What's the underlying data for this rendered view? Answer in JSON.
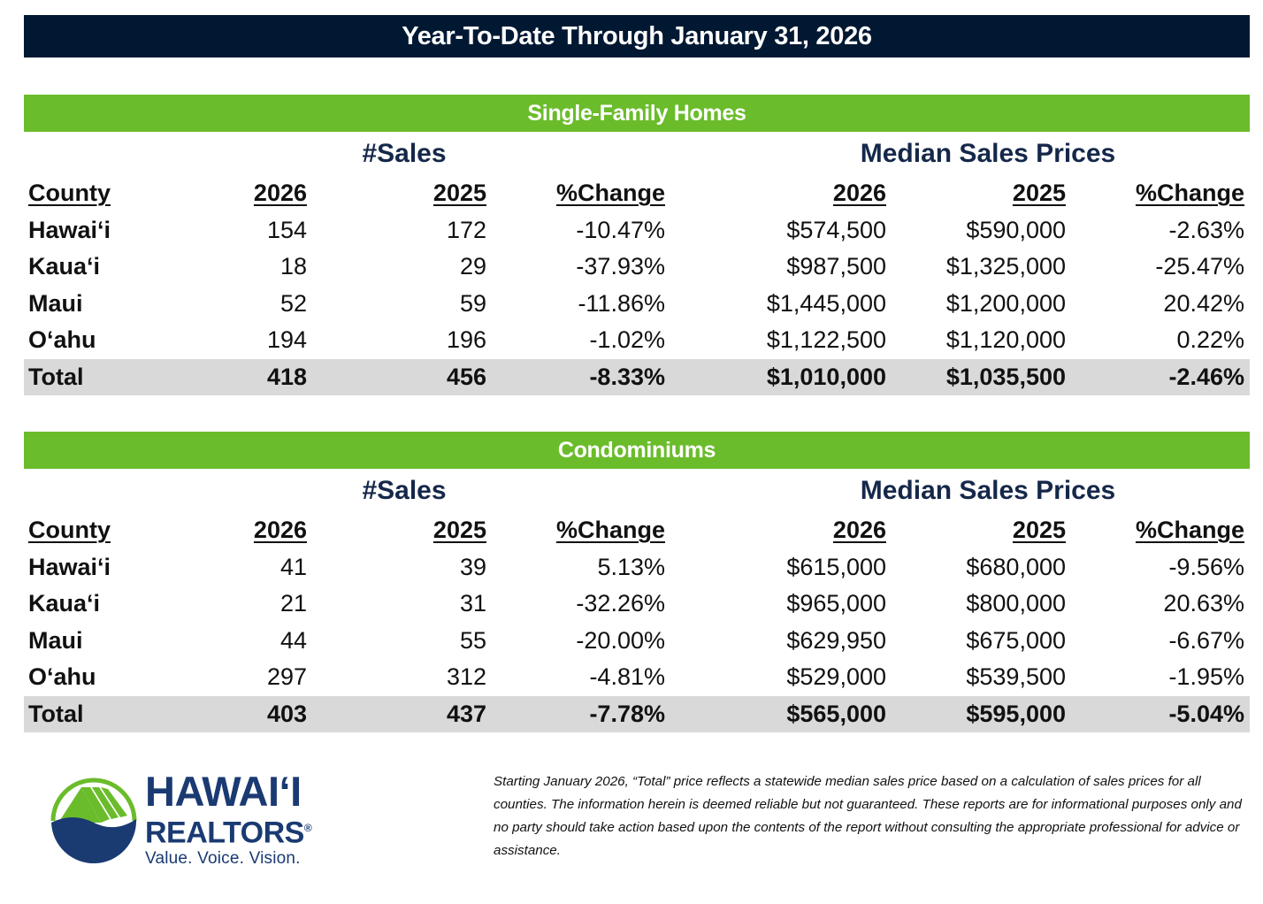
{
  "title": "Year-To-Date Through January 31, 2026",
  "colors": {
    "title_bg": "#011833",
    "section_bg": "#6bbc2b",
    "group_text": "#15284a",
    "total_row_bg": "#d9d9d9",
    "logo_navy": "#1a3a72",
    "logo_green": "#6bbc2b"
  },
  "tables": [
    {
      "heading": "Single-Family Homes",
      "group_sales": "#Sales",
      "group_prices": "Median Sales Prices",
      "columns": [
        "County",
        "2026",
        "2025",
        "%Change",
        "2026",
        "2025",
        "%Change"
      ],
      "rows": [
        [
          "Hawai‘i",
          "154",
          "172",
          "-10.47%",
          "$574,500",
          "$590,000",
          "-2.63%"
        ],
        [
          "Kaua‘i",
          "18",
          "29",
          "-37.93%",
          "$987,500",
          "$1,325,000",
          "-25.47%"
        ],
        [
          "Maui",
          "52",
          "59",
          "-11.86%",
          "$1,445,000",
          "$1,200,000",
          "20.42%"
        ],
        [
          "O‘ahu",
          "194",
          "196",
          "-1.02%",
          "$1,122,500",
          "$1,120,000",
          "0.22%"
        ]
      ],
      "total": [
        "Total",
        "418",
        "456",
        "-8.33%",
        "$1,010,000",
        "$1,035,500",
        "-2.46%"
      ]
    },
    {
      "heading": "Condominiums",
      "group_sales": "#Sales",
      "group_prices": "Median Sales Prices",
      "columns": [
        "County",
        "2026",
        "2025",
        "%Change",
        "2026",
        "2025",
        "%Change"
      ],
      "rows": [
        [
          "Hawai‘i",
          "41",
          "39",
          "5.13%",
          "$615,000",
          "$680,000",
          "-9.56%"
        ],
        [
          "Kaua‘i",
          "21",
          "31",
          "-32.26%",
          "$965,000",
          "$800,000",
          "20.63%"
        ],
        [
          "Maui",
          "44",
          "55",
          "-20.00%",
          "$629,950",
          "$675,000",
          "-6.67%"
        ],
        [
          "O‘ahu",
          "297",
          "312",
          "-4.81%",
          "$529,000",
          "$539,500",
          "-1.95%"
        ]
      ],
      "total": [
        "Total",
        "403",
        "437",
        "-7.78%",
        "$565,000",
        "$595,000",
        "-5.04%"
      ]
    }
  ],
  "logo": {
    "line1": "HAWAI‘I",
    "line2": "REALTORS",
    "registered": "®",
    "tagline": "Value. Voice. Vision."
  },
  "disclaimer": "Starting January 2026, “Total” price reflects a statewide median sales price based on a calculation of sales prices for all counties. The information herein is deemed reliable but not guaranteed. These reports are for informational purposes only and no party should take action based upon the contents of the report without consulting the appropriate professional for advice or assistance."
}
